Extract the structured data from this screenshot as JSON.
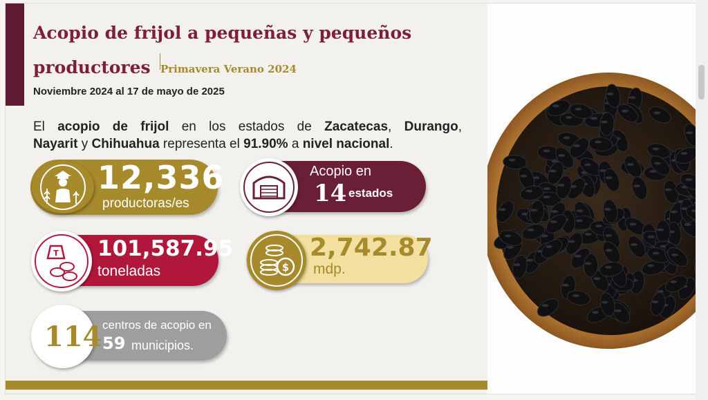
{
  "slide": {
    "title_line1": "Acopio de frijol a pequeñas y pequeños",
    "title_line2": "productores",
    "season": "Primavera Verano 2024",
    "period": "Noviembre 2024 al 17 de mayo de 2025"
  },
  "intro": {
    "t1": "El ",
    "t2": "acopio de frijol",
    "t3": " en los estados de ",
    "t4": "Zacatecas",
    "t5": ", ",
    "t6": "Durango",
    "t7": ",",
    "t8": "Nayarit",
    "t9": " y ",
    "t10": "Chihuahua",
    "t11": " representa el ",
    "t12": "91.90%",
    "t13": " a ",
    "t14": "nivel nacional",
    "t15": "."
  },
  "cards": {
    "producers": {
      "value": "12,336",
      "label": "productoras/es"
    },
    "states": {
      "line1": "Acopio en",
      "value": "14",
      "line2": "estados"
    },
    "tonnes": {
      "value": "101,587.95",
      "label": "toneladas"
    },
    "money": {
      "value": "2,742.87",
      "label": "mdp."
    },
    "centers": {
      "value": "114",
      "line1": "centros de acopio en",
      "value2": "59",
      "line2": "municipios."
    }
  },
  "colors": {
    "maroon": "#6b1f36",
    "gold": "#a68a2c",
    "crimson": "#b1173b",
    "cream": "#f2e0a0",
    "gray": "#9e9e9e"
  },
  "icons": [
    "farmer-icon",
    "warehouse-icon",
    "weight-beans-icon",
    "coins-icon"
  ]
}
